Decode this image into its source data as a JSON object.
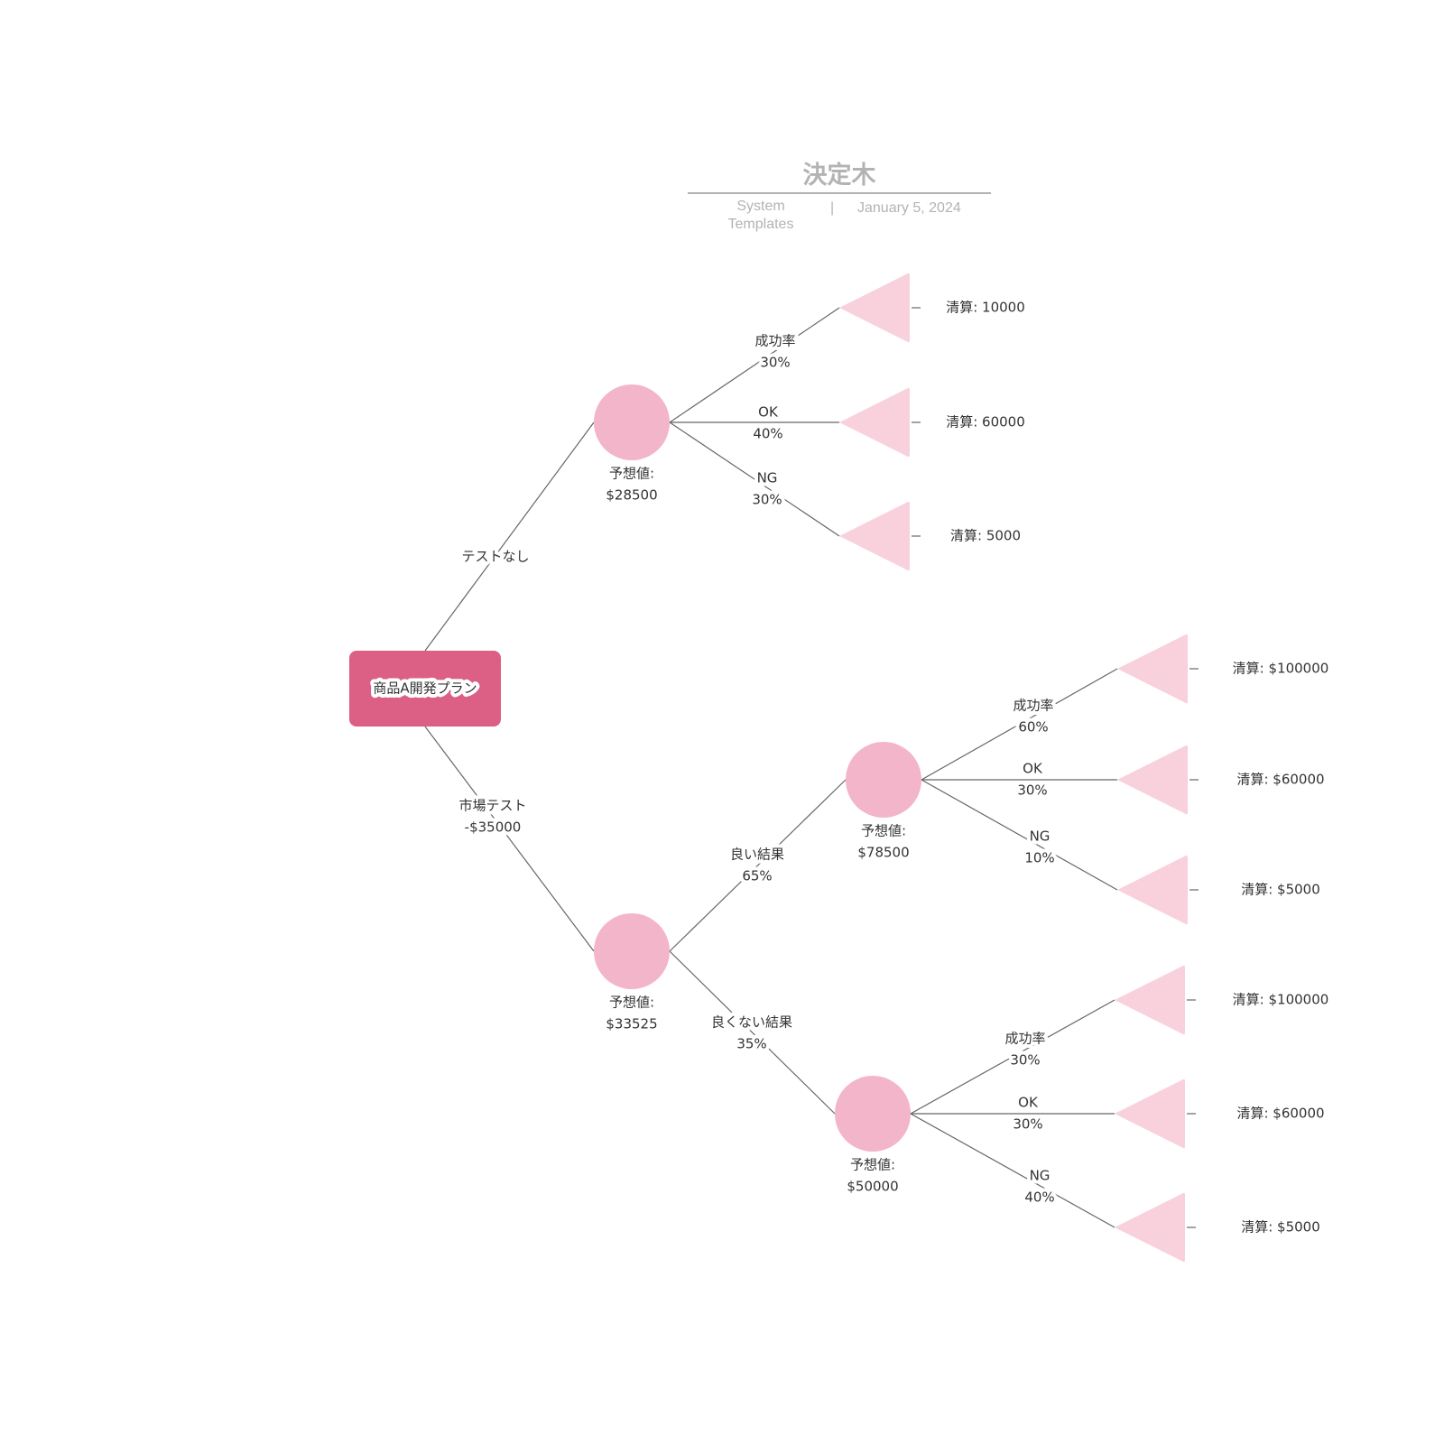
{
  "header": {
    "title": "決定木",
    "author": "System Templates",
    "separator": "|",
    "date": "January 5, 2024"
  },
  "colors": {
    "root": "#dc5f85",
    "chance_node": "#f3b5c9",
    "end_node": "#f8d1dd",
    "line": "#666666"
  },
  "root": {
    "label": "商品A開発プラン"
  },
  "decisions": [
    {
      "label": [
        "テストなし"
      ]
    },
    {
      "label": [
        "市場テスト",
        "-$35000"
      ]
    }
  ],
  "chance_nodes": [
    {
      "ev": [
        "予想値:",
        "$28500"
      ]
    },
    {
      "ev": [
        "予想値:",
        "$33525"
      ]
    },
    {
      "ev": [
        "予想値:",
        "$78500"
      ]
    },
    {
      "ev": [
        "予想値:",
        "$50000"
      ]
    }
  ],
  "test_outcomes": [
    {
      "label": [
        "良い結果",
        "65%"
      ]
    },
    {
      "label": [
        "良くない結果",
        "35%"
      ]
    }
  ],
  "branches": [
    [
      {
        "label": [
          "成功率",
          "30%"
        ],
        "payoff": "清算: 10000"
      },
      {
        "label": [
          "OK",
          "40%"
        ],
        "payoff": "清算: 60000"
      },
      {
        "label": [
          "NG",
          "30%"
        ],
        "payoff": "清算: 5000"
      }
    ],
    [
      {
        "label": [
          "成功率",
          "60%"
        ],
        "payoff": "清算: $100000"
      },
      {
        "label": [
          "OK",
          "30%"
        ],
        "payoff": "清算: $60000"
      },
      {
        "label": [
          "NG",
          "10%"
        ],
        "payoff": "清算: $5000"
      }
    ],
    [
      {
        "label": [
          "成功率",
          "30%"
        ],
        "payoff": "清算: $100000"
      },
      {
        "label": [
          "OK",
          "30%"
        ],
        "payoff": "清算: $60000"
      },
      {
        "label": [
          "NG",
          "40%"
        ],
        "payoff": "清算: $5000"
      }
    ]
  ]
}
